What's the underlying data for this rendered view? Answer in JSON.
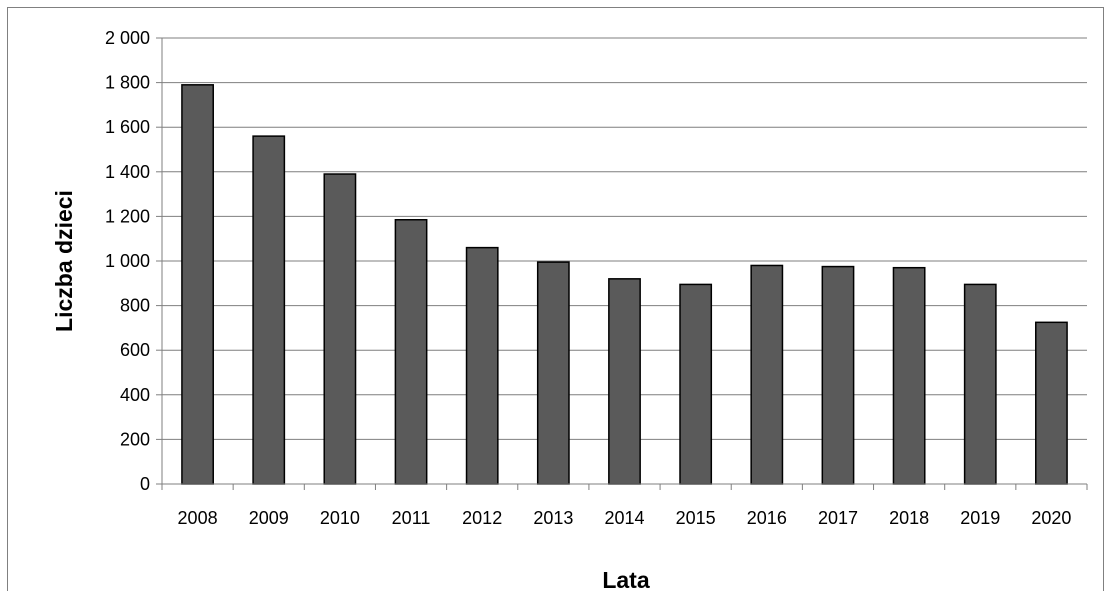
{
  "chart_data": {
    "type": "bar",
    "title": "",
    "xlabel": "Lata",
    "ylabel": "Liczba dzieci",
    "categories": [
      "2008",
      "2009",
      "2010",
      "2011",
      "2012",
      "2013",
      "2014",
      "2015",
      "2016",
      "2017",
      "2018",
      "2019",
      "2020"
    ],
    "values": [
      1790,
      1560,
      1390,
      1185,
      1060,
      995,
      920,
      895,
      980,
      975,
      970,
      895,
      725
    ],
    "ylim": [
      0,
      2000
    ],
    "yticks": [
      0,
      200,
      400,
      600,
      800,
      1000,
      1200,
      1400,
      1600,
      1800,
      2000
    ],
    "ytick_labels": [
      "0",
      "200",
      "400",
      "600",
      "800",
      "1 000",
      "1 200",
      "1 400",
      "1 600",
      "1 800",
      "2 000"
    ],
    "grid": true,
    "legend": "none",
    "colors": {
      "bar": "#5a5a5a",
      "bar_edge": "#000000",
      "grid": "#7f7f7f",
      "axis": "#7f7f7f"
    }
  }
}
